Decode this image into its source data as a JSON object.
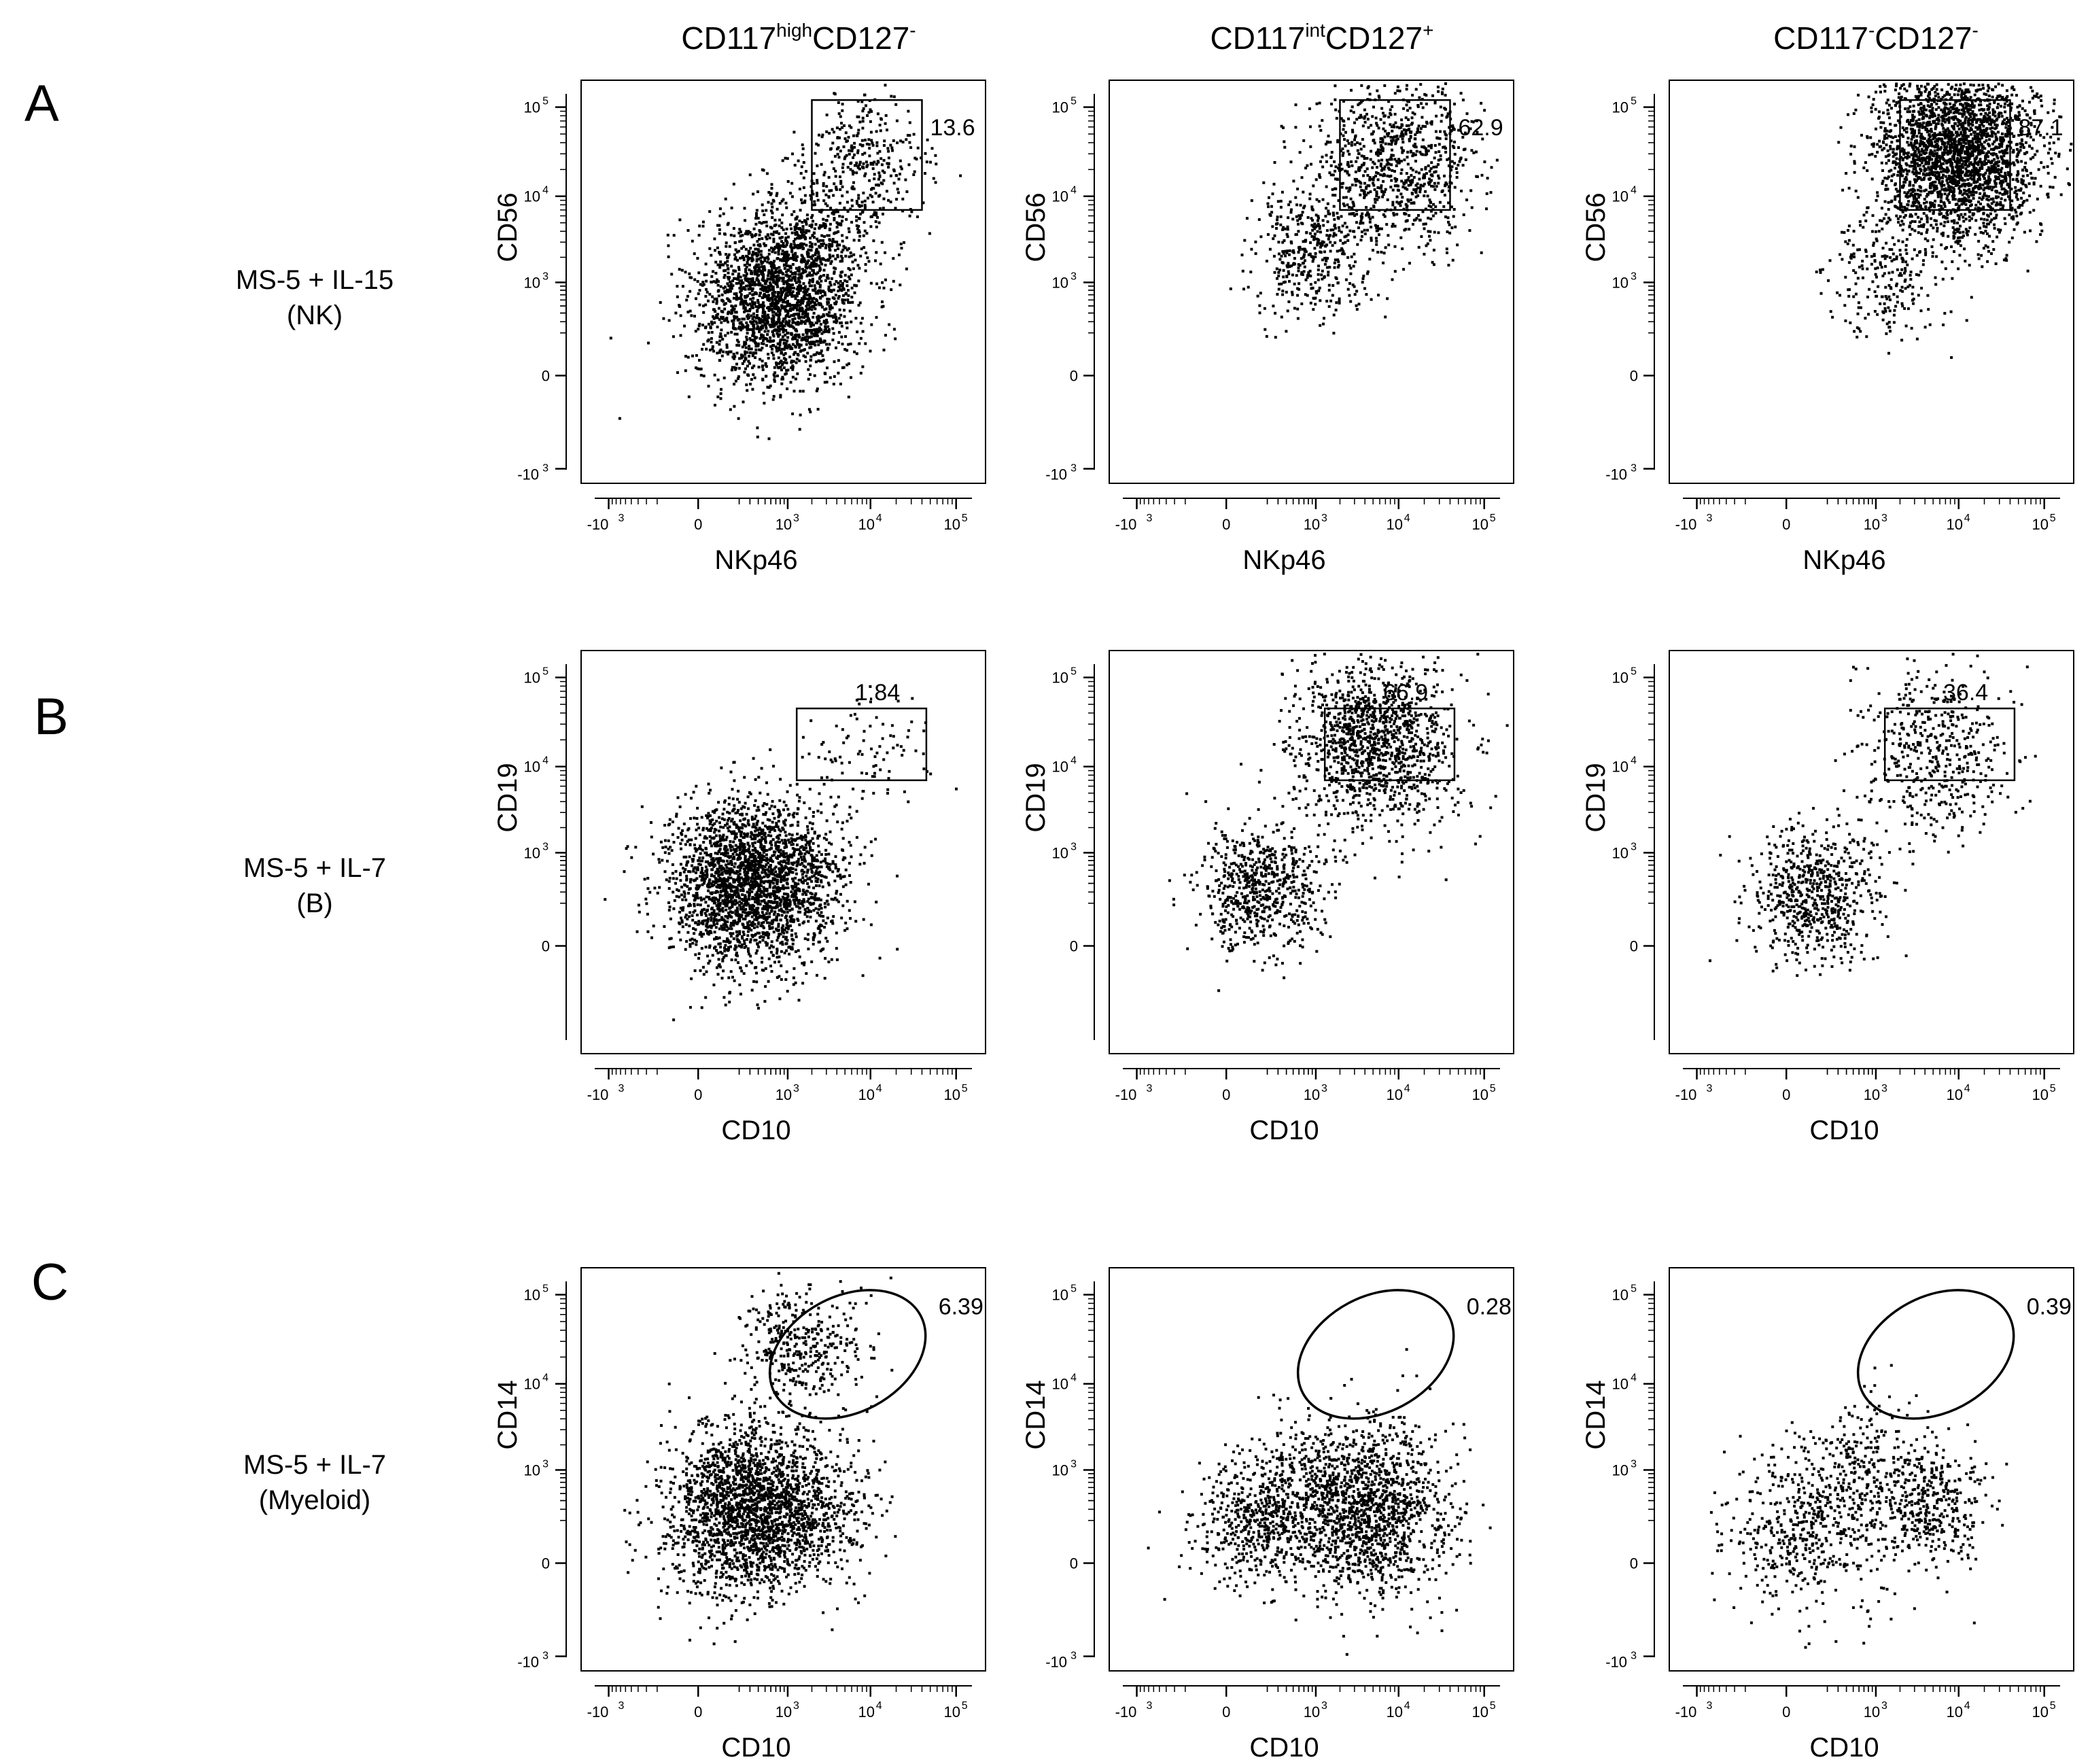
{
  "figure": {
    "columns": [
      {
        "base": "CD117",
        "sup1": "high",
        "mid": "CD127",
        "sup2": "-"
      },
      {
        "base": "CD117",
        "sup1": "int",
        "mid": "CD127",
        "sup2": "+"
      },
      {
        "base": "CD117",
        "sup1": "-",
        "mid": "CD127",
        "sup2": "-"
      }
    ],
    "rows": [
      {
        "panel": "A",
        "condition": "MS-5 + IL-15",
        "subtitle": "(NK)"
      },
      {
        "panel": "B",
        "condition": "MS-5 + IL-7",
        "subtitle": "(B)"
      },
      {
        "panel": "C",
        "condition": "MS-5 + IL-7",
        "subtitle": "(Myeloid)"
      }
    ],
    "tick_labels": {
      "base": "10",
      "neg_exp": "3",
      "pos_exp": [
        "3",
        "4",
        "5"
      ],
      "zero": "0",
      "neg_prefix": "-10"
    }
  },
  "chart_data": [
    {
      "type": "scatter",
      "panel": "A",
      "column": 1,
      "xlabel": "NKp46",
      "ylabel": "CD56",
      "scale": "biexponential",
      "x_ticks": [
        "-10^3",
        "0",
        "10^3",
        "10^4",
        "10^5"
      ],
      "y_ticks": [
        "-10^3",
        "0",
        "10^3",
        "10^4",
        "10^5"
      ],
      "gate": {
        "shape": "rectangle",
        "x": [
          2000,
          40000
        ],
        "y": [
          7000,
          120000
        ],
        "percent": "13.6"
      },
      "populations": [
        {
          "x": 700,
          "y": 600,
          "n": 2100
        },
        {
          "x": 8000,
          "y": 25000,
          "n": 330
        },
        {
          "x": 2500,
          "y": 4000,
          "n": 300
        }
      ]
    },
    {
      "type": "scatter",
      "panel": "A",
      "column": 2,
      "xlabel": "NKp46",
      "ylabel": "CD56",
      "scale": "biexponential",
      "x_ticks": [
        "-10^3",
        "0",
        "10^3",
        "10^4",
        "10^5"
      ],
      "y_ticks": [
        "-10^3",
        "0",
        "10^3",
        "10^4",
        "10^5"
      ],
      "gate": {
        "shape": "rectangle",
        "x": [
          2000,
          40000
        ],
        "y": [
          7000,
          120000
        ],
        "percent": "62.9"
      },
      "populations": [
        {
          "x": 9000,
          "y": 25000,
          "n": 900
        },
        {
          "x": 900,
          "y": 2500,
          "n": 420
        }
      ]
    },
    {
      "type": "scatter",
      "panel": "A",
      "column": 3,
      "xlabel": "NKp46",
      "ylabel": "CD56",
      "scale": "biexponential",
      "x_ticks": [
        "-10^3",
        "0",
        "10^3",
        "10^4",
        "10^5"
      ],
      "y_ticks": [
        "-10^3",
        "0",
        "10^3",
        "10^4",
        "10^5"
      ],
      "gate": {
        "shape": "rectangle",
        "x": [
          2000,
          40000
        ],
        "y": [
          7000,
          120000
        ],
        "percent": "87.1"
      },
      "populations": [
        {
          "x": 9000,
          "y": 30000,
          "n": 2600
        },
        {
          "x": 1200,
          "y": 1500,
          "n": 240
        }
      ]
    },
    {
      "type": "scatter",
      "panel": "B",
      "column": 1,
      "xlabel": "CD10",
      "ylabel": "CD19",
      "scale": "biexponential",
      "x_ticks": [
        "-10^3",
        "0",
        "10^3",
        "10^4",
        "10^5"
      ],
      "y_ticks": [
        "0",
        "10^3",
        "10^4",
        "10^5"
      ],
      "gate": {
        "shape": "rectangle",
        "x": [
          1300,
          45000
        ],
        "y": [
          7000,
          45000
        ],
        "percent": "1.84"
      },
      "populations": [
        {
          "x": 250,
          "y": 400,
          "n": 2300
        },
        {
          "x": 8000,
          "y": 15000,
          "n": 90
        },
        {
          "x": 1500,
          "y": 600,
          "n": 220
        }
      ]
    },
    {
      "type": "scatter",
      "panel": "B",
      "column": 2,
      "xlabel": "CD10",
      "ylabel": "CD19",
      "scale": "biexponential",
      "x_ticks": [
        "-10^3",
        "0",
        "10^3",
        "10^4",
        "10^5"
      ],
      "y_ticks": [
        "0",
        "10^3",
        "10^4",
        "10^5"
      ],
      "gate": {
        "shape": "rectangle",
        "x": [
          1300,
          45000
        ],
        "y": [
          7000,
          45000
        ],
        "percent": "66.9"
      },
      "populations": [
        {
          "x": 5000,
          "y": 18000,
          "n": 1250
        },
        {
          "x": 150,
          "y": 350,
          "n": 650
        }
      ]
    },
    {
      "type": "scatter",
      "panel": "B",
      "column": 3,
      "xlabel": "CD10",
      "ylabel": "CD19",
      "scale": "biexponential",
      "x_ticks": [
        "-10^3",
        "0",
        "10^3",
        "10^4",
        "10^5"
      ],
      "y_ticks": [
        "0",
        "10^3",
        "10^4",
        "10^5"
      ],
      "gate": {
        "shape": "rectangle",
        "x": [
          1300,
          45000
        ],
        "y": [
          7000,
          45000
        ],
        "percent": "36.4"
      },
      "populations": [
        {
          "x": 5000,
          "y": 14000,
          "n": 480
        },
        {
          "x": 100,
          "y": 300,
          "n": 650
        }
      ]
    },
    {
      "type": "scatter",
      "panel": "C",
      "column": 1,
      "xlabel": "CD10",
      "ylabel": "CD14",
      "scale": "biexponential",
      "x_ticks": [
        "-10^3",
        "0",
        "10^3",
        "10^4",
        "10^5"
      ],
      "y_ticks": [
        "-10^3",
        "0",
        "10^3",
        "10^4",
        "10^5"
      ],
      "gate": {
        "shape": "ellipse",
        "x": [
          500,
          50000
        ],
        "y": [
          3000,
          150000
        ],
        "percent": "6.39"
      },
      "populations": [
        {
          "x": 250,
          "y": 300,
          "n": 2100
        },
        {
          "x": 1500,
          "y": 25000,
          "n": 380
        },
        {
          "x": 2500,
          "y": 250,
          "n": 260
        }
      ]
    },
    {
      "type": "scatter",
      "panel": "C",
      "column": 2,
      "xlabel": "CD10",
      "ylabel": "CD14",
      "scale": "biexponential",
      "x_ticks": [
        "-10^3",
        "0",
        "10^3",
        "10^4",
        "10^5"
      ],
      "y_ticks": [
        "-10^3",
        "0",
        "10^3",
        "10^4",
        "10^5"
      ],
      "gate": {
        "shape": "ellipse",
        "x": [
          500,
          50000
        ],
        "y": [
          3000,
          150000
        ],
        "percent": "0.28"
      },
      "populations": [
        {
          "x": 4000,
          "y": 300,
          "n": 1450
        },
        {
          "x": 120,
          "y": 200,
          "n": 520
        },
        {
          "x": 600,
          "y": 1000,
          "n": 130
        }
      ]
    },
    {
      "type": "scatter",
      "panel": "C",
      "column": 3,
      "xlabel": "CD10",
      "ylabel": "CD14",
      "scale": "biexponential",
      "x_ticks": [
        "-10^3",
        "0",
        "10^3",
        "10^4",
        "10^5"
      ],
      "y_ticks": [
        "-10^3",
        "0",
        "10^3",
        "10^4",
        "10^5"
      ],
      "gate": {
        "shape": "ellipse",
        "x": [
          500,
          50000
        ],
        "y": [
          3000,
          150000
        ],
        "percent": "0.39"
      },
      "populations": [
        {
          "x": 80,
          "y": 150,
          "n": 520
        },
        {
          "x": 700,
          "y": 1400,
          "n": 200
        },
        {
          "x": 4500,
          "y": 350,
          "n": 420
        }
      ]
    }
  ]
}
